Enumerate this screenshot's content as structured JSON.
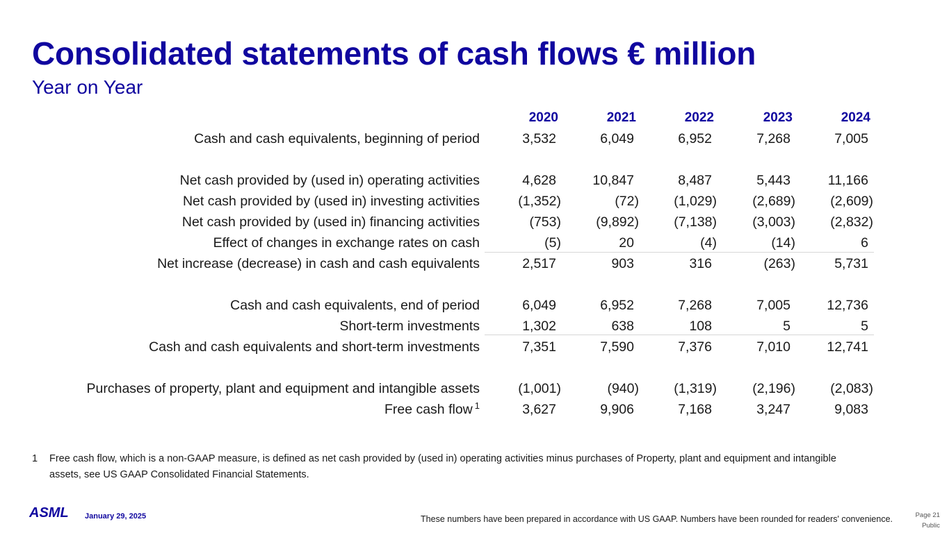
{
  "title": "Consolidated statements of cash flows € million",
  "subtitle": "Year on Year",
  "years": [
    "2020",
    "2021",
    "2022",
    "2023",
    "2024"
  ],
  "rows": [
    {
      "label": "Cash and cash equivalents, beginning of period",
      "values": [
        "3,532",
        "6,049",
        "6,952",
        "7,268",
        "7,005"
      ]
    },
    {
      "label": "Net cash provided by (used in) operating activities",
      "values": [
        "4,628",
        "10,847",
        "8,487",
        "5,443",
        "11,166"
      ]
    },
    {
      "label": "Net cash provided by (used in) investing activities",
      "values": [
        "(1,352)",
        "(72)",
        "(1,029)",
        "(2,689)",
        "(2,609)"
      ]
    },
    {
      "label": "Net cash provided by (used in) financing activities",
      "values": [
        "(753)",
        "(9,892)",
        "(7,138)",
        "(3,003)",
        "(2,832)"
      ]
    },
    {
      "label": "Effect of changes in exchange rates on cash",
      "values": [
        "(5)",
        "20",
        "(4)",
        "(14)",
        "6"
      ]
    },
    {
      "label": "Net increase (decrease) in cash and cash equivalents",
      "values": [
        "2,517",
        "903",
        "316",
        "(263)",
        "5,731"
      ]
    },
    {
      "label": "Cash and cash equivalents, end of period",
      "values": [
        "6,049",
        "6,952",
        "7,268",
        "7,005",
        "12,736"
      ]
    },
    {
      "label": "Short-term investments",
      "values": [
        "1,302",
        "638",
        "108",
        "5",
        "5"
      ]
    },
    {
      "label": "Cash and cash equivalents and short-term investments",
      "values": [
        "7,351",
        "7,590",
        "7,376",
        "7,010",
        "12,741"
      ]
    },
    {
      "label": "Purchases of property, plant and equipment and intangible assets",
      "values": [
        "(1,001)",
        "(940)",
        "(1,319)",
        "(2,196)",
        "(2,083)"
      ]
    },
    {
      "label": "Free cash flow",
      "sup": "1",
      "values": [
        "3,627",
        "9,906",
        "7,168",
        "3,247",
        "9,083"
      ]
    }
  ],
  "footnote": {
    "number": "1",
    "text": "Free cash flow, which is a non-GAAP measure, is defined as net cash provided by (used in) operating activities minus purchases of Property, plant and equipment and intangible assets, see US GAAP Consolidated Financial Statements."
  },
  "footer": {
    "logo_text": "ASML",
    "date": "January 29, 2025",
    "disclaimer": "These numbers have been prepared in accordance with US GAAP.  Numbers have been rounded for readers' convenience.",
    "page": "Page 21",
    "classification": "Public"
  },
  "colors": {
    "brand_blue": "#10069f",
    "text": "#1a1a1a",
    "rule": "#d7d7d7"
  }
}
